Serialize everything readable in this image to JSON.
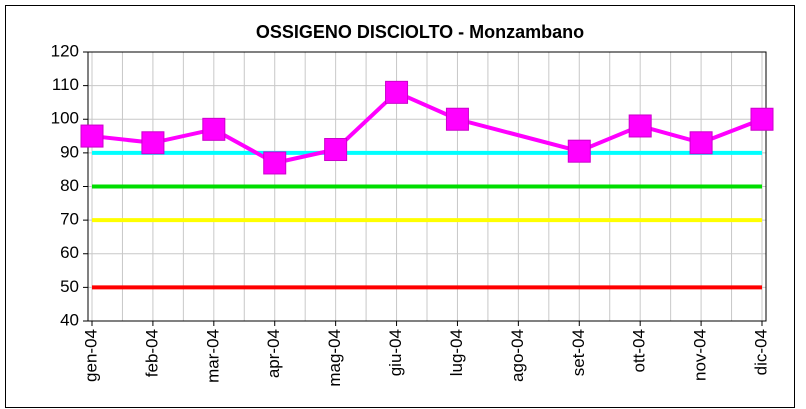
{
  "chart_data": {
    "type": "line",
    "title": "OSSIGENO DISCIOLTO - Monzambano",
    "categories": [
      "gen-04",
      "feb-04",
      "mar-04",
      "apr-04",
      "mag-04",
      "giu-04",
      "lug-04",
      "ago-04",
      "set-04",
      "ott-04",
      "nov-04",
      "dic-04"
    ],
    "series": [
      {
        "color": "#ff00ff",
        "values": [
          95,
          93,
          97,
          87,
          91,
          108,
          100,
          null,
          90.5,
          98,
          93,
          100
        ]
      }
    ],
    "reference_lines": [
      {
        "value": 90,
        "color": "#00ffff"
      },
      {
        "value": 80,
        "color": "#00dd00"
      },
      {
        "value": 70,
        "color": "#ffff00"
      },
      {
        "value": 50,
        "color": "#ff0000"
      }
    ],
    "ylim": [
      40,
      120
    ],
    "yticks": [
      40,
      50,
      60,
      70,
      80,
      90,
      100,
      110,
      120
    ],
    "grid": true
  }
}
